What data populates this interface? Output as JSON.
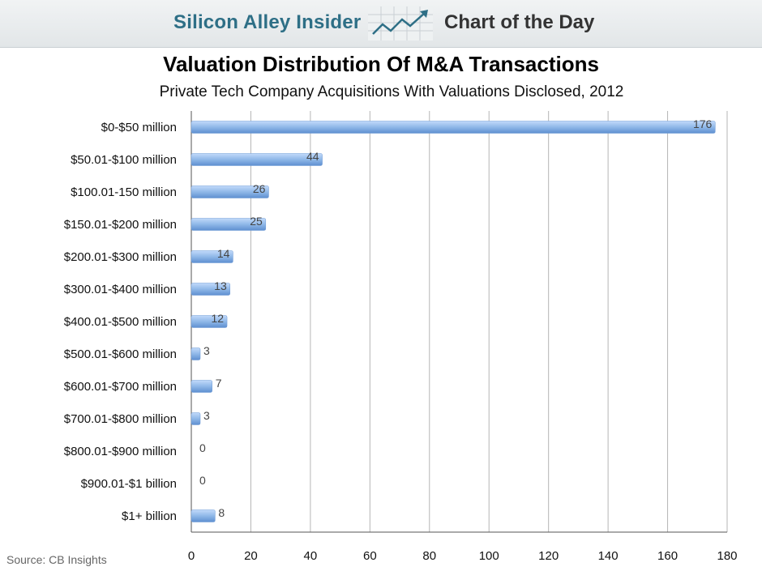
{
  "header": {
    "brand": "Silicon Alley Insider",
    "section": "Chart of the Day",
    "logo_icon": "trend-arrow-icon"
  },
  "source": "Source: CB Insights",
  "chart_data": {
    "type": "bar",
    "orientation": "horizontal",
    "title": "Valuation Distribution Of M&A Transactions",
    "subtitle": "Private Tech Company Acquisitions With Valuations Disclosed, 2012",
    "categories": [
      "$0-$50 million",
      "$50.01-$100 million",
      "$100.01-150 million",
      "$150.01-$200 million",
      "$200.01-$300 million",
      "$300.01-$400 million",
      "$400.01-$500 million",
      "$500.01-$600 million",
      "$600.01-$700 million",
      "$700.01-$800 million",
      "$800.01-$900 million",
      "$900.01-$1 billion",
      "$1+ billion"
    ],
    "values": [
      176,
      44,
      26,
      25,
      14,
      13,
      12,
      3,
      7,
      3,
      0,
      0,
      8
    ],
    "xlim": [
      0,
      180
    ],
    "xticks": [
      0,
      20,
      40,
      60,
      80,
      100,
      120,
      140,
      160,
      180
    ],
    "grid": "vertical",
    "bar_color": "#8fb8e8",
    "xlabel": "",
    "ylabel": ""
  }
}
